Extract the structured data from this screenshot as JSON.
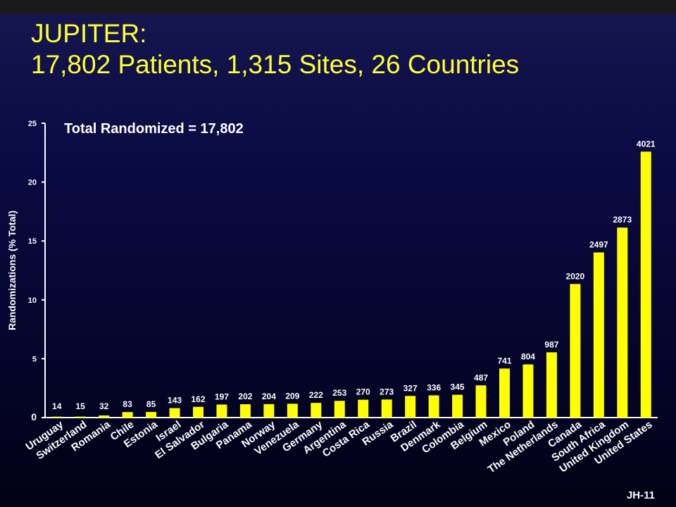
{
  "slide": {
    "title_line1": "JUPITER:",
    "title_line2": "17,802 Patients, 1,315 Sites, 26 Countries",
    "footer": "JH-11"
  },
  "colors": {
    "bar": "#ffff00",
    "title": "#ffff33",
    "text": "#ffffff"
  },
  "chart_data": {
    "type": "bar",
    "title": "Total Randomized = 17,802",
    "xlabel": "",
    "ylabel": "Randomizations (% Total)",
    "ylim": [
      0,
      25
    ],
    "yticks": [
      0,
      5,
      10,
      15,
      20,
      25
    ],
    "grid": false,
    "categories": [
      "Uruguay",
      "Switzerland",
      "Romania",
      "Chile",
      "Estonia",
      "Israel",
      "El Salvador",
      "Bulgaria",
      "Panama",
      "Norway",
      "Venezuela",
      "Germany",
      "Argentina",
      "Costa Rica",
      "Russia",
      "Brazil",
      "Denmark",
      "Colombia",
      "Belgium",
      "Mexico",
      "Poland",
      "The Netherlands",
      "Canada",
      "South Africa",
      "United Kingdom",
      "United States"
    ],
    "counts": [
      14,
      15,
      32,
      83,
      85,
      143,
      162,
      197,
      202,
      204,
      209,
      222,
      253,
      270,
      273,
      327,
      336,
      345,
      487,
      741,
      804,
      987,
      2020,
      2497,
      2873,
      4021
    ],
    "total": 17802
  }
}
